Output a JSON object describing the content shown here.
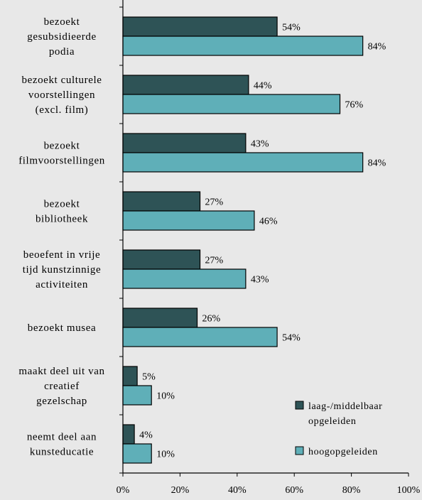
{
  "chart_data": {
    "type": "bar",
    "orientation": "horizontal",
    "categories": [
      [
        "bezoekt",
        "gesubsidieerde",
        "podia"
      ],
      [
        "bezoekt culturele",
        "voorstellingen",
        "(excl. film)"
      ],
      [
        "bezoekt",
        "filmvoorstellingen"
      ],
      [
        "bezoekt",
        "bibliotheek"
      ],
      [
        "beoefent in vrije",
        "tijd kunstzinnige",
        "activiteiten"
      ],
      [
        "bezoekt musea"
      ],
      [
        "maakt deel uit van",
        "creatief",
        "gezelschap"
      ],
      [
        "neemt deel aan",
        "kunsteducatie"
      ]
    ],
    "series": [
      {
        "name": "laag-/middelbaar opgeleiden",
        "legend_lines": [
          "laag-/middelbaar",
          "opgeleiden"
        ],
        "color": "#2e5356",
        "values": [
          54,
          44,
          43,
          27,
          27,
          26,
          5,
          4
        ],
        "labels": [
          "54%",
          "44%",
          "43%",
          "27%",
          "27%",
          "26%",
          "5%",
          "4%"
        ]
      },
      {
        "name": "hoogopgeleiden",
        "legend_lines": [
          "hoogopgeleiden"
        ],
        "color": "#5fafb8",
        "values": [
          84,
          76,
          84,
          46,
          43,
          54,
          10,
          10
        ],
        "labels": [
          "84%",
          "76%",
          "84%",
          "46%",
          "43%",
          "54%",
          "10%",
          "10%"
        ]
      }
    ],
    "xlim": [
      0,
      100
    ],
    "x_ticks": [
      "0%",
      "20%",
      "40%",
      "60%",
      "80%",
      "100%"
    ],
    "grid": false,
    "legend_position": "bottom-right",
    "background": "#e8e8e8"
  }
}
